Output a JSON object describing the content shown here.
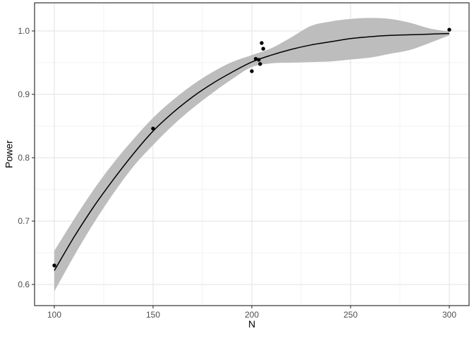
{
  "chart_data": {
    "type": "scatter",
    "title": "",
    "xlabel": "N",
    "ylabel": "Power",
    "x_ticks": [
      100,
      150,
      200,
      250,
      300
    ],
    "x_tick_labels": [
      "100",
      "150",
      "200",
      "250",
      "300"
    ],
    "y_ticks": [
      0.6,
      0.7,
      0.8,
      0.9,
      1.0
    ],
    "y_tick_labels": [
      "0.6",
      "0.7",
      "0.8",
      "0.9",
      "1.0"
    ],
    "x_minor_ticks": [
      125,
      175,
      225,
      275
    ],
    "y_minor_ticks": [
      0.65,
      0.75,
      0.85,
      0.95
    ],
    "xlim": [
      90,
      310
    ],
    "ylim": [
      0.5667,
      1.0444
    ],
    "grid": "on",
    "legend": "none",
    "points": [
      [
        100,
        0.63
      ],
      [
        150,
        0.846
      ],
      [
        200,
        0.9365
      ],
      [
        202,
        0.956
      ],
      [
        203.5,
        0.9545
      ],
      [
        204.2,
        0.948
      ],
      [
        205,
        0.981
      ],
      [
        205.8,
        0.972
      ],
      [
        300,
        1.002
      ]
    ],
    "smooth": {
      "x": [
        100,
        110,
        120,
        130,
        140,
        150,
        160,
        170,
        180,
        190,
        200,
        210,
        220,
        230,
        240,
        250,
        260,
        270,
        280,
        290,
        300
      ],
      "fit": [
        0.622,
        0.675,
        0.723,
        0.766,
        0.806,
        0.842,
        0.871,
        0.896,
        0.917,
        0.935,
        0.951,
        0.962,
        0.971,
        0.978,
        0.983,
        0.988,
        0.991,
        0.993,
        0.994,
        0.995,
        0.996
      ],
      "lo": [
        0.589,
        0.645,
        0.697,
        0.744,
        0.786,
        0.82,
        0.851,
        0.878,
        0.902,
        0.924,
        0.943,
        0.949,
        0.95,
        0.951,
        0.952,
        0.955,
        0.958,
        0.964,
        0.97,
        0.981,
        0.993
      ],
      "hi": [
        0.653,
        0.703,
        0.75,
        0.792,
        0.829,
        0.863,
        0.891,
        0.915,
        0.935,
        0.951,
        0.962,
        0.973,
        0.99,
        1.008,
        1.015,
        1.019,
        1.0205,
        1.019,
        1.013,
        1.004,
        0.999
      ]
    },
    "colors": {
      "background": "#ffffff",
      "panel_background": "#ffffff",
      "panel_border": "#333333",
      "grid_major": "#e6e6e6",
      "grid_minor": "#f2f2f2",
      "ribbon": "#bdbdbd",
      "line": "#000000",
      "point": "#000000",
      "tick": "#333333",
      "tick_label": "#4d4d4d",
      "axis_title": "#000000"
    },
    "style": {
      "point_radius": 2.7,
      "line_width": 1.5,
      "tick_label_size": 12,
      "axis_title_size": 14
    }
  }
}
